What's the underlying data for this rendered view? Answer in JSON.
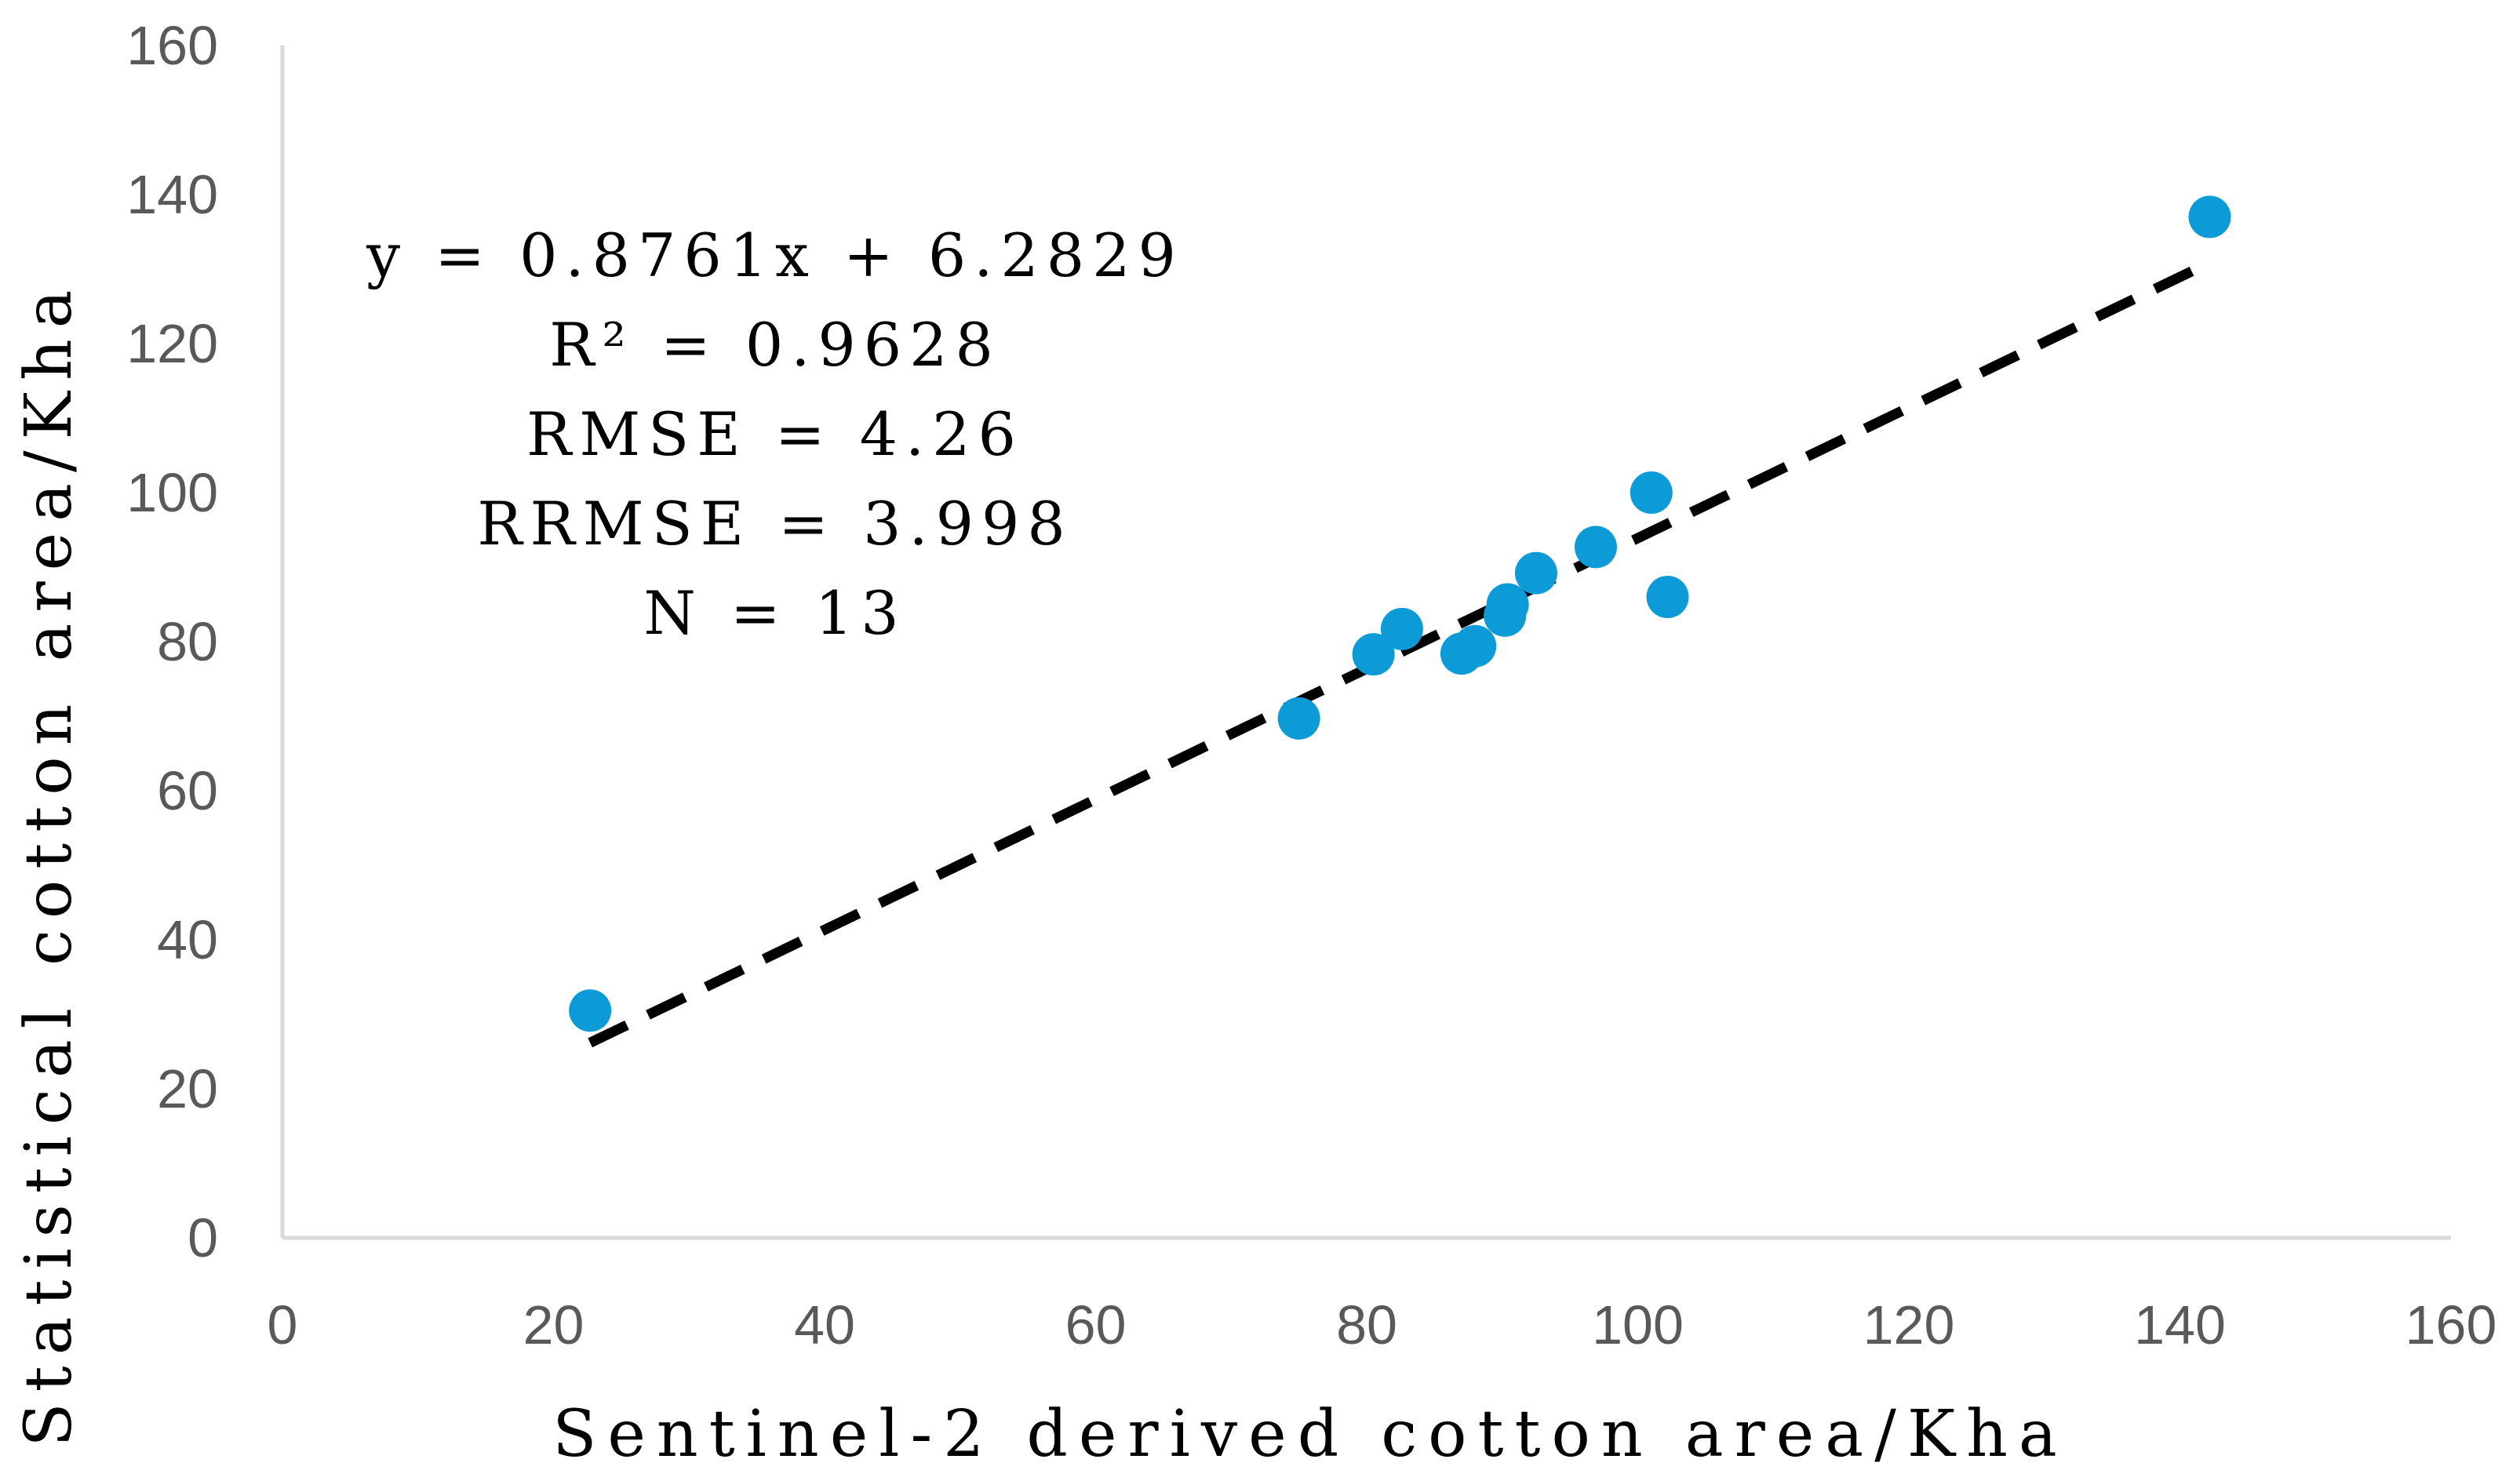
{
  "chart_data": {
    "type": "scatter",
    "xlabel": "Sentinel-2 derived cotton area/Kha",
    "ylabel": "Statistical cotton area/Kha",
    "xlim": [
      0,
      160
    ],
    "ylim": [
      0,
      160
    ],
    "x_ticks": [
      0,
      20,
      40,
      60,
      80,
      100,
      120,
      140,
      160
    ],
    "y_ticks": [
      0,
      20,
      40,
      60,
      80,
      100,
      120,
      140,
      160
    ],
    "grid": false,
    "point_color": "#0D9BD7",
    "trendline_color": "#000000",
    "series": [
      {
        "points": [
          {
            "x": 22.7,
            "y": 30.5
          },
          {
            "x": 75.0,
            "y": 69.7
          },
          {
            "x": 80.5,
            "y": 78.3
          },
          {
            "x": 82.6,
            "y": 81.7
          },
          {
            "x": 87.0,
            "y": 78.4
          },
          {
            "x": 88.0,
            "y": 79.4
          },
          {
            "x": 90.2,
            "y": 83.5
          },
          {
            "x": 90.4,
            "y": 85.0
          },
          {
            "x": 92.5,
            "y": 89.2
          },
          {
            "x": 96.9,
            "y": 92.7
          },
          {
            "x": 101.0,
            "y": 100.0
          },
          {
            "x": 102.2,
            "y": 86.0
          },
          {
            "x": 142.2,
            "y": 137.0
          }
        ]
      }
    ],
    "trendline": {
      "slope": 0.8761,
      "intercept": 6.2829,
      "x_range": [
        22.7,
        142.2
      ],
      "style": "dashed"
    },
    "annotations": [
      "y = 0.8761x + 6.2829",
      "R² = 0.9628",
      "RMSE = 4.26",
      "RRMSE = 3.998",
      "N = 13"
    ]
  }
}
